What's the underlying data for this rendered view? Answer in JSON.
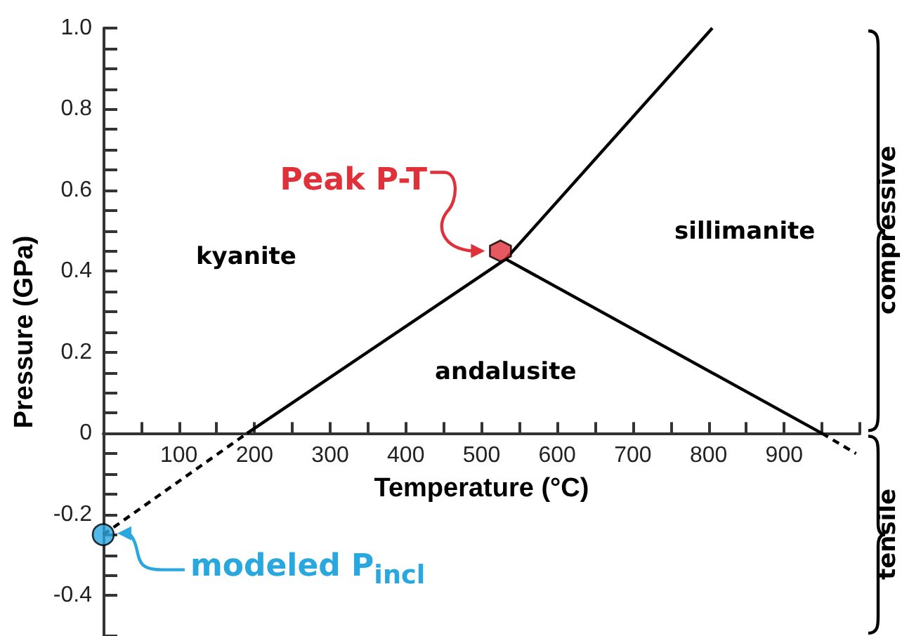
{
  "chart_data": {
    "type": "line",
    "xlabel": "Temperature (°C)",
    "ylabel": "Pressure (GPa)",
    "xlim": [
      0,
      1000
    ],
    "ylim": [
      -0.5,
      1.0
    ],
    "xticks": [
      {
        "value": 0,
        "label": null
      },
      {
        "value": 50,
        "label": null
      },
      100,
      {
        "value": 150,
        "label": null
      },
      200,
      {
        "value": 250,
        "label": null
      },
      300,
      {
        "value": 350,
        "label": null
      },
      400,
      {
        "value": 450,
        "label": null
      },
      500,
      {
        "value": 550,
        "label": null
      },
      600,
      {
        "value": 650,
        "label": null
      },
      700,
      {
        "value": 750,
        "label": null
      },
      800,
      {
        "value": 850,
        "label": null
      },
      900,
      {
        "value": 950,
        "label": null
      },
      {
        "value": 1000,
        "label": null
      }
    ],
    "yticks": [
      {
        "value": -0.5,
        "label": null
      },
      -0.4,
      {
        "value": -0.35,
        "label": null
      },
      {
        "value": -0.3,
        "label": null
      },
      {
        "value": -0.25,
        "label": null
      },
      -0.2,
      {
        "value": -0.15,
        "label": null
      },
      {
        "value": -0.1,
        "label": null
      },
      {
        "value": -0.05,
        "label": null
      },
      0,
      {
        "value": 0.05,
        "label": null
      },
      {
        "value": 0.1,
        "label": null
      },
      {
        "value": 0.15,
        "label": null
      },
      0.2,
      {
        "value": 0.25,
        "label": null
      },
      {
        "value": 0.3,
        "label": null
      },
      {
        "value": 0.35,
        "label": null
      },
      0.4,
      {
        "value": 0.45,
        "label": null
      },
      {
        "value": 0.5,
        "label": null
      },
      {
        "value": 0.55,
        "label": null
      },
      0.6,
      {
        "value": 0.65,
        "label": null
      },
      {
        "value": 0.7,
        "label": null
      },
      {
        "value": 0.75,
        "label": null
      },
      0.8,
      {
        "value": 0.85,
        "label": null
      },
      {
        "value": 0.9,
        "label": null
      },
      {
        "value": 0.95,
        "label": null
      },
      {
        "value": 1,
        "label": "1.0"
      }
    ],
    "grid": false,
    "series": [
      {
        "x": [
          190,
          532
        ],
        "values": [
          0,
          0.43
        ],
        "color": "#000000",
        "line_style": "solid",
        "marker": "none"
      },
      {
        "x": [
          0,
          190
        ],
        "values": [
          -0.25,
          0
        ],
        "color": "#000000",
        "line_style": "dashed",
        "marker": "none"
      },
      {
        "x": [
          532,
          805
        ],
        "values": [
          0.43,
          1.0
        ],
        "color": "#000000",
        "line_style": "solid",
        "marker": "none"
      },
      {
        "x": [
          532,
          950
        ],
        "values": [
          0.43,
          0
        ],
        "color": "#000000",
        "line_style": "solid",
        "marker": "none"
      },
      {
        "x": [
          950,
          995
        ],
        "values": [
          0,
          -0.05
        ],
        "color": "#000000",
        "line_style": "dashed",
        "marker": "none"
      },
      {
        "type": "scatter",
        "x": [
          525
        ],
        "values": [
          0.45
        ],
        "color": "#e0303a"
      },
      {
        "type": "scatter",
        "x": [
          0
        ],
        "values": [
          -0.25
        ],
        "color": "#29a8e0",
        "marker": "circle"
      }
    ],
    "annotations": [
      "kyanite",
      "sillimanite",
      "andalusite",
      {
        "text": "Peak P-T",
        "x": 525,
        "y": 0.45
      },
      {
        "text": "modeled P$_{incl}$",
        "x": 0,
        "y": -0.25
      },
      "compressive",
      "tensile"
    ]
  }
}
